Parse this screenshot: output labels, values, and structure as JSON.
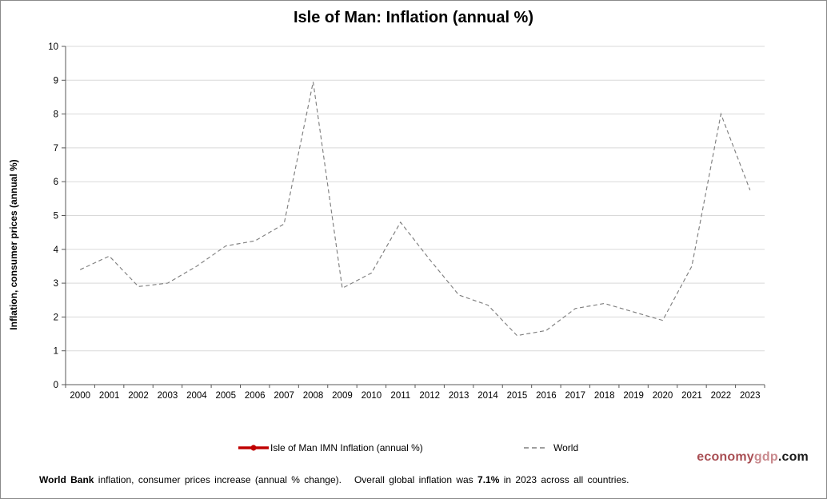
{
  "chart_data": {
    "type": "line",
    "title": "Isle of Man: Inflation (annual %)",
    "ylabel": "Inflation, consumer prices (annual %)",
    "xlabel": "",
    "ylim": [
      0,
      10
    ],
    "yticks": [
      0,
      1,
      2,
      3,
      4,
      5,
      6,
      7,
      8,
      9,
      10
    ],
    "grid": "horizontal",
    "legend_position": "bottom",
    "categories": [
      "2000",
      "2001",
      "2002",
      "2003",
      "2004",
      "2005",
      "2006",
      "2007",
      "2008",
      "2009",
      "2010",
      "2011",
      "2012",
      "2013",
      "2014",
      "2015",
      "2016",
      "2017",
      "2018",
      "2019",
      "2020",
      "2021",
      "2022",
      "2023"
    ],
    "series": [
      {
        "name": "Isle of Man IMN Inflation (annual %)",
        "color": "#c00000",
        "style": "solid-with-marker",
        "values": []
      },
      {
        "name": "World",
        "color": "#7f7f7f",
        "style": "dashed",
        "values": [
          3.4,
          3.8,
          2.9,
          3.0,
          3.5,
          4.1,
          4.25,
          4.75,
          8.95,
          2.85,
          3.3,
          4.8,
          3.7,
          2.65,
          2.35,
          1.45,
          1.6,
          2.25,
          2.4,
          2.15,
          1.9,
          3.5,
          8.0,
          5.75
        ]
      }
    ]
  },
  "colors": {
    "gridline": "#d9d9d9",
    "axis": "#595959",
    "tick_label": "#000000",
    "legend_red": "#c00000",
    "world_line": "#7f7f7f",
    "brand_economy": "#a94f54",
    "brand_gdp": "#c98a8e",
    "brand_com": "#1a1a1a"
  },
  "brand": {
    "economy": "economy",
    "gdp": "gdp",
    "com": ".com"
  },
  "footnote": {
    "bold1": "World Bank",
    "text1": " inflation, consumer prices increase (annual % change).   Overall global inflation was ",
    "bold2": "7.1%",
    "text2": " in 2023 across all countries."
  }
}
